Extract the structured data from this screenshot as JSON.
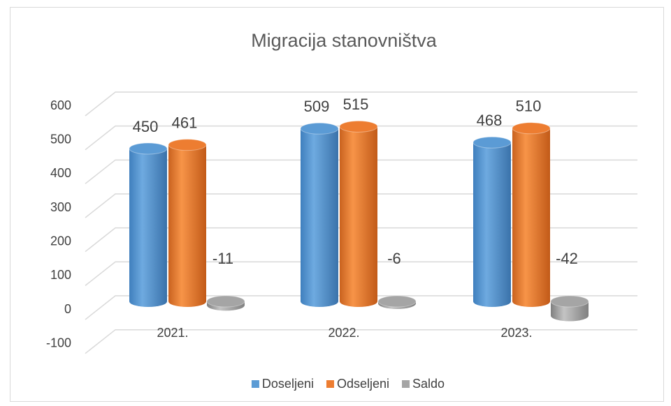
{
  "chart_data": {
    "type": "bar",
    "title": "Migracija stanovništva",
    "categories": [
      "2021.",
      "2022.",
      "2023."
    ],
    "series": [
      {
        "name": "Doseljeni",
        "color": "#5b9bd5",
        "values": [
          450,
          509,
          468
        ]
      },
      {
        "name": "Odseljeni",
        "color": "#ed7d31",
        "values": [
          461,
          515,
          510
        ]
      },
      {
        "name": "Saldo",
        "color": "#a5a5a5",
        "values": [
          -11,
          -6,
          -42
        ]
      }
    ],
    "ylim": [
      -100,
      600
    ],
    "yticks": [
      -100,
      0,
      100,
      200,
      300,
      400,
      500,
      600
    ],
    "grid": true,
    "legend": "bottom"
  }
}
